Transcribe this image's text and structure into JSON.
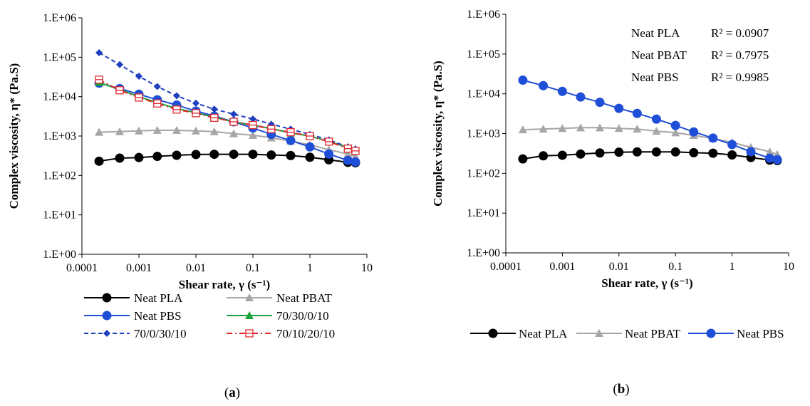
{
  "chart_data": [
    {
      "panel": "a",
      "caption": "(a)",
      "type": "line",
      "x_scale": "log",
      "y_scale": "log",
      "xlabel": "Shear rate, γ (s⁻¹)",
      "ylabel": "Complex viscosity, η* (Pa.S)",
      "xlim": [
        0.0001,
        10
      ],
      "ylim": [
        1,
        1000000
      ],
      "x_ticks": [
        "0.0001",
        "0.001",
        "0.01",
        "0.1",
        "1",
        "10"
      ],
      "y_ticks": [
        "1.E+00",
        "1.E+01",
        "1.E+02",
        "1.E+03",
        "1.E+04",
        "1.E+05",
        "1.E+06"
      ],
      "grid": false,
      "legend_position": "bottom",
      "x": [
        0.0002,
        0.00046,
        0.001,
        0.0021,
        0.0046,
        0.01,
        0.021,
        0.046,
        0.1,
        0.21,
        0.46,
        1.0,
        2.15,
        4.64,
        6.3
      ],
      "series": [
        {
          "name": "Neat PLA",
          "color": "#000000",
          "marker": "circle",
          "dash": "solid",
          "values": [
            230,
            275,
            285,
            305,
            325,
            340,
            345,
            345,
            345,
            330,
            320,
            290,
            250,
            215,
            210
          ]
        },
        {
          "name": "Neat PBAT",
          "color": "#a6a6a6",
          "marker": "triangle",
          "dash": "solid",
          "values": [
            1250,
            1300,
            1350,
            1400,
            1400,
            1350,
            1300,
            1150,
            1050,
            900,
            750,
            600,
            450,
            350,
            300
          ]
        },
        {
          "name": "Neat PBS",
          "color": "#1f4fd8",
          "marker": "circle",
          "dash": "solid",
          "values": [
            22000,
            16000,
            11500,
            8300,
            6100,
            4300,
            3200,
            2300,
            1600,
            1100,
            770,
            530,
            350,
            240,
            220
          ]
        },
        {
          "name": "70/30/0/10",
          "color": "#1aa33a",
          "marker": "triangle",
          "dash": "solid",
          "values": [
            23000,
            15000,
            10000,
            7000,
            5000,
            3900,
            3000,
            2300,
            1900,
            1550,
            1200,
            1000,
            730,
            520,
            440
          ]
        },
        {
          "name": "70/0/30/10",
          "color": "#1f3fbf",
          "marker": "diamond",
          "dash": "dashed",
          "values": [
            130000,
            65000,
            33000,
            18000,
            10500,
            6800,
            4800,
            3600,
            2700,
            2000,
            1500,
            1100,
            800,
            530,
            470
          ]
        },
        {
          "name": "70/10/20/10",
          "color": "#e3262e",
          "marker": "square-cross",
          "dash": "dashdot",
          "values": [
            27000,
            14500,
            9500,
            6700,
            4700,
            3800,
            2900,
            2300,
            1900,
            1500,
            1250,
            1000,
            720,
            480,
            420
          ]
        }
      ]
    },
    {
      "panel": "b",
      "caption": "(b)",
      "type": "line",
      "x_scale": "log",
      "y_scale": "log",
      "xlabel": "Shear rate, γ (s⁻¹)",
      "ylabel": "Complex viscosity, η* (Pa.S)",
      "xlim": [
        0.0001,
        10
      ],
      "ylim": [
        1,
        1000000
      ],
      "x_ticks": [
        "0.0001",
        "0.001",
        "0.01",
        "0.1",
        "1",
        "10"
      ],
      "y_ticks": [
        "1.E+00",
        "1.E+01",
        "1.E+02",
        "1.E+03",
        "1.E+04",
        "1.E+05",
        "1.E+06"
      ],
      "grid": false,
      "legend_position": "bottom",
      "annotations": [
        {
          "name": "Neat PLA",
          "value": "R² = 0.0907"
        },
        {
          "name": "Neat PBAT",
          "value": "R² = 0.7975"
        },
        {
          "name": "Neat PBS",
          "value": "R² = 0.9985"
        }
      ],
      "x": [
        0.0002,
        0.00046,
        0.001,
        0.0021,
        0.0046,
        0.01,
        0.021,
        0.046,
        0.1,
        0.21,
        0.46,
        1.0,
        2.15,
        4.64,
        6.3
      ],
      "series": [
        {
          "name": "Neat PLA",
          "color": "#000000",
          "marker": "circle",
          "dash": "solid",
          "values": [
            230,
            275,
            285,
            305,
            325,
            340,
            345,
            345,
            345,
            330,
            320,
            290,
            250,
            215,
            210
          ]
        },
        {
          "name": "Neat PBAT",
          "color": "#a6a6a6",
          "marker": "triangle",
          "dash": "solid",
          "values": [
            1250,
            1300,
            1350,
            1400,
            1400,
            1350,
            1300,
            1150,
            1050,
            900,
            750,
            600,
            450,
            350,
            300
          ]
        },
        {
          "name": "Neat PBS",
          "color": "#1f4fd8",
          "marker": "circle",
          "dash": "solid",
          "values": [
            22000,
            16000,
            11500,
            8300,
            6100,
            4300,
            3200,
            2300,
            1600,
            1100,
            770,
            530,
            350,
            240,
            220
          ]
        }
      ]
    }
  ]
}
